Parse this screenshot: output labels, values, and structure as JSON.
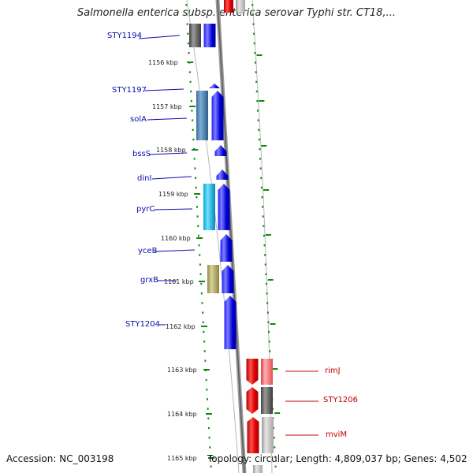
{
  "title": "Salmonella enterica subsp. enterica serovar Typhi str. CT18,...",
  "accession_text": "Accession: NC_003198",
  "topology_text": "Topology: circular; Length: 4,809,037 bp; Genes: 4,502",
  "colors": {
    "forward_label": "#0b0bb0",
    "reverse_label": "#c00000",
    "forward_gene": "#0000ee",
    "reverse_gene": "#ee0000",
    "ruler_tick": "#118811",
    "backbone": "#888888"
  },
  "kbp_markers": [
    "1156 kbp",
    "1157 kbp",
    "1158 kbp",
    "1159 kbp",
    "1160 kbp",
    "1161 kbp",
    "1162 kbp",
    "1163 kbp",
    "1164 kbp",
    "1165 kbp"
  ],
  "forward_genes": [
    {
      "label": "STY1194"
    },
    {
      "label": "STY1197"
    },
    {
      "label": "solA"
    },
    {
      "label": "bssS"
    },
    {
      "label": "dinI"
    },
    {
      "label": "pyrC"
    },
    {
      "label": "yceB"
    },
    {
      "label": "grxB"
    },
    {
      "label": "STY1204"
    }
  ],
  "reverse_genes": [
    {
      "label": "rimJ"
    },
    {
      "label": "STY1206"
    },
    {
      "label": "mviM"
    }
  ]
}
